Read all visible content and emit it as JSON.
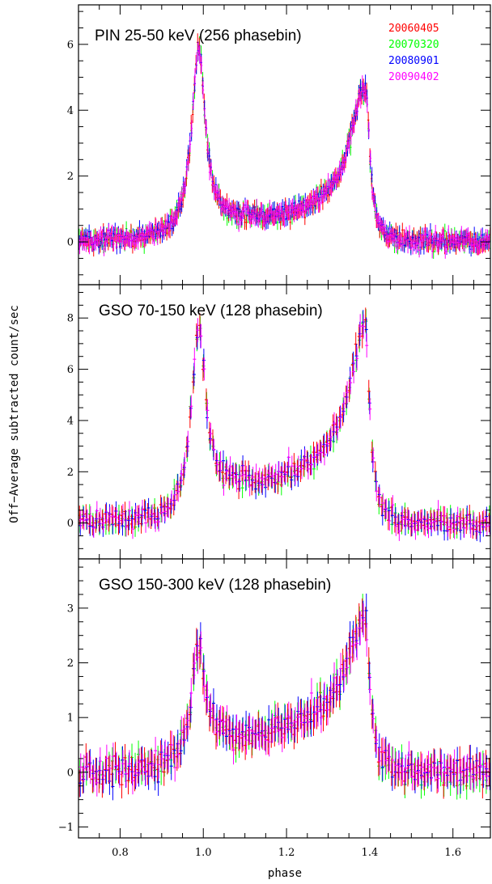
{
  "chart_data": {
    "type": "scatter",
    "xlabel": "phase",
    "ylabel": "Off−Average subtracted count/sec",
    "xlim": [
      0.7,
      1.69
    ],
    "x_ticks": [
      0.8,
      1.0,
      1.2,
      1.4,
      1.6
    ],
    "x_tick_labels": [
      "0.8",
      "1.0",
      "1.2",
      "1.4",
      "1.6"
    ],
    "legend": {
      "placement": "top-right",
      "entries": [
        {
          "name": "20060405",
          "color": "#ff0000"
        },
        {
          "name": "20070320",
          "color": "#00ff00"
        },
        {
          "name": "20080901",
          "color": "#0000ff"
        },
        {
          "name": "20090402",
          "color": "#ff00ff"
        }
      ]
    },
    "panels": [
      {
        "title": "PIN 25-50 keV (256 phasebin)",
        "ylim": [
          -1.3,
          7.2
        ],
        "y_ticks": [
          0,
          2,
          4,
          6
        ],
        "y_tick_labels": [
          "0",
          "2",
          "4",
          "6"
        ],
        "nbins": 256,
        "baseline": 0.0,
        "bridge": 0.55,
        "bridge_curve": 0.35,
        "peak1": 5.8,
        "peak2": 4.7,
        "noise": 0.18,
        "err": 0.22,
        "xstep": 0.0039
      },
      {
        "title": "GSO 70-150 keV (128 phasebin)",
        "ylim": [
          -1.4,
          9.3
        ],
        "y_ticks": [
          0,
          2,
          4,
          6,
          8
        ],
        "y_tick_labels": [
          "0",
          "2",
          "4",
          "6",
          "8"
        ],
        "nbins": 128,
        "baseline": 0.0,
        "bridge": 1.35,
        "bridge_curve": 0.9,
        "peak1": 7.6,
        "peak2": 7.8,
        "noise": 0.28,
        "err": 0.38,
        "xstep": 0.0078
      },
      {
        "title": "GSO 150-300 keV (128 phasebin)",
        "ylim": [
          -1.2,
          3.9
        ],
        "y_ticks": [
          -1,
          0,
          1,
          2,
          3
        ],
        "y_tick_labels": [
          "−1",
          "0",
          "1",
          "2",
          "3"
        ],
        "nbins": 128,
        "baseline": 0.0,
        "bridge": 0.6,
        "bridge_curve": 0.6,
        "peak1": 2.3,
        "peak2": 2.8,
        "noise": 0.18,
        "err": 0.25,
        "xstep": 0.0078
      }
    ]
  }
}
